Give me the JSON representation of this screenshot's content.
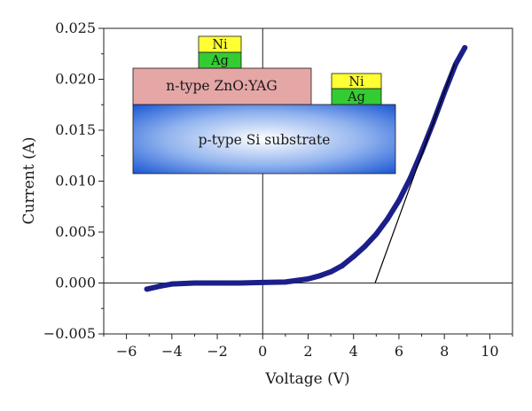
{
  "chart_data": {
    "type": "line",
    "xlabel": "Voltage (V)",
    "ylabel": "Current (A)",
    "xlim": [
      -7,
      11
    ],
    "ylim": [
      -0.005,
      0.025
    ],
    "xticks": [
      -6,
      -4,
      -2,
      0,
      2,
      4,
      6,
      8,
      10
    ],
    "yticks": [
      -0.005,
      0.0,
      0.005,
      0.01,
      0.015,
      0.02,
      0.025
    ],
    "xtick_labels": [
      "−6",
      "−4",
      "−2",
      "0",
      "2",
      "4",
      "6",
      "8",
      "10"
    ],
    "ytick_labels": [
      "−0.005",
      "0.000",
      "0.005",
      "0.010",
      "0.015",
      "0.020",
      "0.025"
    ],
    "grid": false,
    "series": [
      {
        "color": "#1b1f8a",
        "x": [
          -5.1,
          -4.5,
          -4.0,
          -3.0,
          -2.0,
          -1.0,
          0.0,
          1.0,
          2.0,
          2.5,
          3.0,
          3.5,
          4.0,
          4.5,
          5.0,
          5.5,
          6.0,
          6.5,
          7.0,
          7.5,
          8.0,
          8.5,
          8.9
        ],
        "y": [
          -0.0006,
          -0.0003,
          -0.0001,
          0.0,
          0.0,
          0.0,
          5e-05,
          0.0001,
          0.0004,
          0.0007,
          0.0011,
          0.0017,
          0.0026,
          0.0036,
          0.0048,
          0.0063,
          0.0081,
          0.0103,
          0.0129,
          0.0157,
          0.0187,
          0.0215,
          0.0231
        ]
      }
    ],
    "tangent_line": {
      "x": [
        4.95,
        8.45
      ],
      "y": [
        0.0,
        0.0215
      ],
      "color": "#000000"
    },
    "reference_lines": {
      "x0": 0,
      "y0": 0
    },
    "inset_diagram": {
      "top_contact": {
        "top": "Ni",
        "bottom": "Ag"
      },
      "film_layer": "n-type ZnO:YAG",
      "side_contact": {
        "top": "Ni",
        "bottom": "Ag"
      },
      "substrate": "p-type Si substrate",
      "colors": {
        "ni": "#ffff33",
        "ag": "#33cc33",
        "film": "#e5a6a6",
        "substrate_center": "#ffffff",
        "substrate_edge": "#1b57d4"
      }
    }
  }
}
